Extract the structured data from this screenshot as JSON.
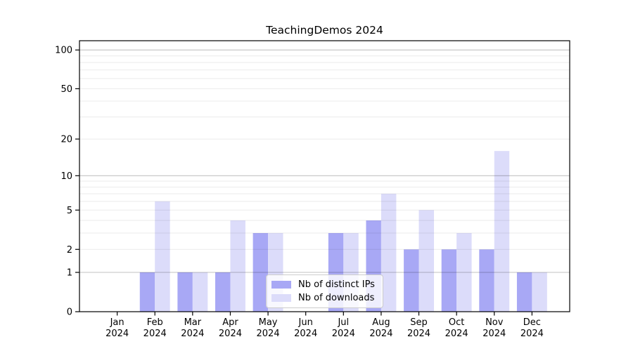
{
  "page": {
    "background": "#ffffff"
  },
  "chart_data": {
    "type": "bar",
    "title": "TeachingDemos 2024",
    "categories": [
      "Jan",
      "Feb",
      "Mar",
      "Apr",
      "May",
      "Jun",
      "Jul",
      "Aug",
      "Sep",
      "Oct",
      "Nov",
      "Dec"
    ],
    "category_year": "2024",
    "series": [
      {
        "name": "Nb of distinct IPs",
        "color": "#a8a8f5",
        "values": [
          0,
          1,
          1,
          1,
          3,
          0,
          3,
          4,
          2,
          2,
          2,
          1
        ]
      },
      {
        "name": "Nb of downloads",
        "color": "#dcdcfa",
        "values": [
          0,
          6,
          1,
          4,
          3,
          0,
          3,
          7,
          5,
          3,
          16,
          1
        ]
      }
    ],
    "y_axis": {
      "scale": "log1p",
      "tick_labels": [
        "0",
        "1",
        "2",
        "5",
        "10",
        "20",
        "50",
        "100"
      ],
      "tick_values": [
        0,
        1,
        2,
        5,
        10,
        20,
        50,
        100
      ],
      "range": [
        0,
        100
      ],
      "major_gridlines": [
        1,
        10,
        100
      ],
      "minor_gridlines": [
        2,
        3,
        4,
        5,
        6,
        7,
        8,
        9,
        20,
        30,
        40,
        50,
        60,
        70,
        80,
        90
      ]
    },
    "legend": {
      "position": "inside-bottom-center",
      "items": [
        "Nb of distinct IPs",
        "Nb of downloads"
      ]
    },
    "grid": true
  },
  "colors": {
    "axis": "#000000",
    "major_grid": "rgba(0,0,0,0.24)",
    "minor_grid": "rgba(0,0,0,0.08)",
    "tick_text": "#000000",
    "legend_border": "#cccccc",
    "legend_background": "rgba(255,255,255,0.8)"
  }
}
